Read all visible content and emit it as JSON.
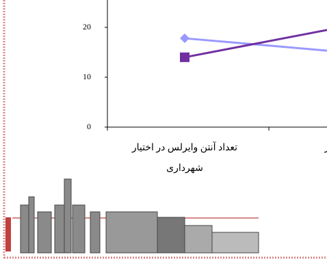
{
  "chart_data": {
    "type": "line",
    "categories": [
      "تعداد آنتن وایرلس در اختیار شهرداری",
      "ی در اختیار"
    ],
    "series": [
      {
        "color": "#9999ff",
        "values": [
          17.8,
          15.0
        ]
      },
      {
        "color": "#7030a0",
        "values": [
          14.0,
          20.2
        ]
      }
    ],
    "ylim": [
      0,
      25
    ],
    "yticks": [
      0,
      10,
      20
    ]
  }
}
